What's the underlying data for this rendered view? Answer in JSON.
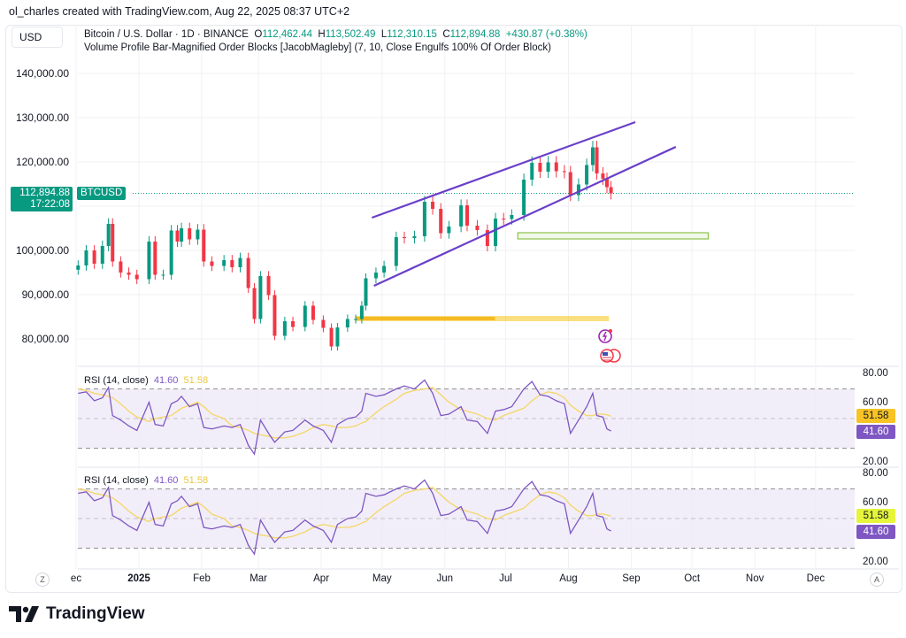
{
  "header": {
    "credit": "ol_charles created with TradingView.com, Aug 22, 2025 08:37 UTC+2",
    "currency": "USD",
    "symbol_desc": "Bitcoin / U.S. Dollar · 1D · BINANCE",
    "o_label": "O",
    "o_value": "112,462.44",
    "h_label": "H",
    "h_value": "113,502.49",
    "l_label": "L",
    "l_value": "112,310.15",
    "c_label": "C",
    "c_value": "112,894.88",
    "change": "+430.87 (+0.38%)",
    "indicator": "Volume Profile Bar-Magnified Order Blocks [JacobMagleby] (7, 10, Close Engulfs 100% Of Order Block)"
  },
  "price_tag": {
    "price": "112,894.88",
    "countdown": "17:22:08",
    "symbol": "BTCUSD"
  },
  "colors": {
    "up": "#089981",
    "down": "#f23645",
    "channel": "#6a3fc9",
    "rsi": "#7e57c2",
    "rsi_ma": "#f5d76e",
    "order_block": "#f5c518",
    "demand_box": "#8bc34a",
    "rsi_band": "#ede7f6"
  },
  "icons": {
    "event": "lightning-event-icon",
    "flag": "us-flag-event-icon",
    "logo": "tradingview-logo-icon"
  },
  "footer": {
    "logo_text": "TradingView",
    "left_btn": "Z",
    "right_btn": "A"
  },
  "chart_data": [
    {
      "type": "candlestick",
      "title": "Bitcoin / U.S. Dollar · 1D · BINANCE",
      "y_ticks": [
        "140,000.00",
        "130,000.00",
        "120,000.00",
        "100,000.00",
        "90,000.00",
        "80,000.00"
      ],
      "y_tick_values": [
        140000,
        130000,
        120000,
        100000,
        90000,
        80000
      ],
      "x_ticks": [
        "ec",
        "2025",
        "Feb",
        "Mar",
        "Apr",
        "May",
        "Jun",
        "Jul",
        "Aug",
        "Sep",
        "Oct",
        "Nov",
        "Dec"
      ],
      "x_tick_dates": [
        "2024-12-01",
        "2025-01-01",
        "2025-02-01",
        "2025-03-01",
        "2025-04-01",
        "2025-05-01",
        "2025-06-01",
        "2025-07-01",
        "2025-08-01",
        "2025-09-01",
        "2025-10-01",
        "2025-11-01",
        "2025-12-01"
      ],
      "grid": true,
      "last_price": 112894.88,
      "dates": [
        "2024-12-02",
        "2024-12-06",
        "2024-12-10",
        "2024-12-14",
        "2024-12-17",
        "2024-12-19",
        "2024-12-23",
        "2024-12-27",
        "2024-12-31",
        "2025-01-06",
        "2025-01-09",
        "2025-01-13",
        "2025-01-17",
        "2025-01-20",
        "2025-01-22",
        "2025-01-26",
        "2025-01-30",
        "2025-02-02",
        "2025-02-06",
        "2025-02-12",
        "2025-02-16",
        "2025-02-20",
        "2025-02-24",
        "2025-02-27",
        "2025-03-02",
        "2025-03-06",
        "2025-03-09",
        "2025-03-14",
        "2025-03-18",
        "2025-03-24",
        "2025-03-28",
        "2025-04-02",
        "2025-04-06",
        "2025-04-09",
        "2025-04-14",
        "2025-04-18",
        "2025-04-21",
        "2025-04-23",
        "2025-04-28",
        "2025-05-02",
        "2025-05-08",
        "2025-05-12",
        "2025-05-17",
        "2025-05-22",
        "2025-05-26",
        "2025-05-30",
        "2025-06-03",
        "2025-06-09",
        "2025-06-12",
        "2025-06-17",
        "2025-06-22",
        "2025-06-26",
        "2025-06-30",
        "2025-07-04",
        "2025-07-10",
        "2025-07-14",
        "2025-07-18",
        "2025-07-22",
        "2025-07-26",
        "2025-07-30",
        "2025-08-02",
        "2025-08-06",
        "2025-08-10",
        "2025-08-13",
        "2025-08-15",
        "2025-08-18",
        "2025-08-20",
        "2025-08-22"
      ],
      "close": [
        96600,
        100000,
        97000,
        101000,
        106000,
        97500,
        95000,
        94500,
        93500,
        102000,
        94500,
        94500,
        104500,
        102000,
        105000,
        102500,
        104700,
        97500,
        96500,
        97800,
        96200,
        98300,
        91500,
        84500,
        94200,
        89900,
        80700,
        84000,
        82700,
        87500,
        84300,
        82500,
        78300,
        82600,
        84500,
        84500,
        87500,
        93700,
        95000,
        96500,
        103000,
        102800,
        103200,
        111000,
        109400,
        103900,
        105400,
        110200,
        105600,
        104600,
        101000,
        107200,
        107100,
        108000,
        116000,
        119800,
        117800,
        119900,
        117900,
        117700,
        112500,
        114900,
        119300,
        123300,
        117400,
        116200,
        114300,
        112894.88
      ],
      "drawings": {
        "channel_upper": {
          "start": [
            "2025-04-26",
            107400
          ],
          "end": [
            "2025-09-03",
            129000
          ]
        },
        "channel_lower": {
          "start": [
            "2025-04-27",
            92000
          ],
          "end": [
            "2025-09-23",
            123400
          ]
        },
        "demand_box": {
          "start": "2025-07-07",
          "end": "2025-10-09",
          "top": 104000,
          "bottom": 102600
        },
        "order_block": {
          "start": "2025-04-18",
          "end": "2025-08-21",
          "top": 85200,
          "bottom": 84000
        }
      }
    },
    {
      "type": "line",
      "title": "RSI (14, close)",
      "value_rsi": "41.60",
      "value_ma": "51.58",
      "y_ticks": [
        "80.00",
        "60.00",
        "20.00"
      ],
      "y_tick_values": [
        80,
        60,
        20
      ],
      "bands": [
        70,
        50,
        30
      ],
      "series": [
        {
          "values": [
            67,
            68,
            62,
            64,
            71,
            52,
            49,
            45,
            42,
            61,
            46,
            45,
            60,
            62,
            65,
            58,
            60,
            44,
            43,
            45,
            44,
            46,
            32,
            26,
            49,
            40,
            34,
            41,
            42,
            49,
            45,
            42,
            34,
            46,
            50,
            51,
            55,
            67,
            65,
            66,
            70,
            72,
            70,
            76,
            67,
            52,
            53,
            58,
            49,
            48,
            40,
            55,
            56,
            58,
            70,
            75,
            66,
            65,
            62,
            60,
            40,
            49,
            58,
            67,
            52,
            51,
            43,
            41.6
          ]
        },
        {
          "values": [
            70,
            69,
            67,
            66,
            65,
            64,
            60,
            55,
            51,
            48,
            50,
            51,
            52,
            55,
            57,
            59,
            61,
            58,
            53,
            50,
            45,
            44,
            42,
            40,
            39,
            38,
            37,
            37,
            38,
            41,
            44,
            46,
            45,
            44,
            44,
            45,
            47,
            48,
            54,
            58,
            63,
            67,
            69,
            70,
            71,
            66,
            61,
            56,
            55,
            53,
            50,
            49,
            52,
            54,
            57,
            62,
            66,
            68,
            67,
            64,
            59,
            55,
            52,
            52,
            53,
            53,
            52.5,
            51.58
          ]
        }
      ]
    }
  ]
}
